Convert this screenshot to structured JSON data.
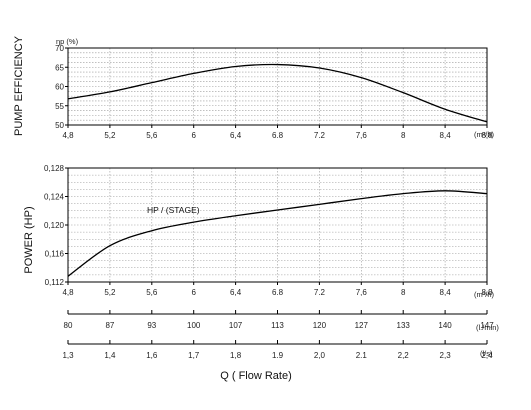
{
  "chart_data": [
    {
      "type": "line",
      "ylabel": "PUMP EFFICIENCY",
      "yunit_label": "ηp (%)",
      "xlabel": "",
      "x_unit_label": "(m³/h)",
      "x_ticks": [
        "4,8",
        "5,2",
        "5,6",
        "6",
        "6,4",
        "6.8",
        "7.2",
        "7,6",
        "8",
        "8,4",
        "8,8"
      ],
      "y_ticks": [
        "50",
        "55",
        "60",
        "65",
        "70"
      ],
      "xlim": [
        4.8,
        8.8
      ],
      "ylim": [
        50,
        70
      ],
      "grid": true,
      "series": [
        {
          "x": [
            4.8,
            5.2,
            5.6,
            6.0,
            6.4,
            6.8,
            7.2,
            7.6,
            8.0,
            8.4,
            8.8
          ],
          "y": [
            56.8,
            58.6,
            61.0,
            63.4,
            65.2,
            65.7,
            64.8,
            62.3,
            58.4,
            54.1,
            50.8
          ]
        }
      ]
    },
    {
      "type": "line",
      "ylabel": "POWER (HP)",
      "xlabel": "",
      "x_unit_label": "(m³/h)",
      "x_ticks": [
        "4,8",
        "5,2",
        "5,6",
        "6",
        "6,4",
        "6.8",
        "7.2",
        "7,6",
        "8",
        "8,4",
        "8,8"
      ],
      "y_ticks": [
        "0,112",
        "0,116",
        "0,120",
        "0,124",
        "0,128"
      ],
      "xlim": [
        4.8,
        8.8
      ],
      "ylim": [
        0.112,
        0.128
      ],
      "grid": true,
      "annotation": "HP / (STAGE)",
      "series": [
        {
          "x": [
            4.8,
            5.2,
            5.6,
            6.0,
            6.4,
            6.8,
            7.2,
            7.6,
            8.0,
            8.4,
            8.8
          ],
          "y": [
            0.1128,
            0.1171,
            0.1192,
            0.1204,
            0.1213,
            0.1221,
            0.1229,
            0.1237,
            0.1244,
            0.1248,
            0.1244
          ]
        }
      ]
    }
  ],
  "extra_axes": [
    {
      "ticks": [
        "80",
        "87",
        "93",
        "100",
        "107",
        "113",
        "120",
        "127",
        "133",
        "140",
        "147"
      ],
      "unit": "(l./min)"
    },
    {
      "ticks": [
        "1,3",
        "1,4",
        "1,6",
        "1,7",
        "1,8",
        "1.9",
        "2,0",
        "2.1",
        "2,2",
        "2,3",
        "2,4"
      ],
      "unit": "(l/s)"
    }
  ],
  "x_title": "Q ( Flow Rate)"
}
